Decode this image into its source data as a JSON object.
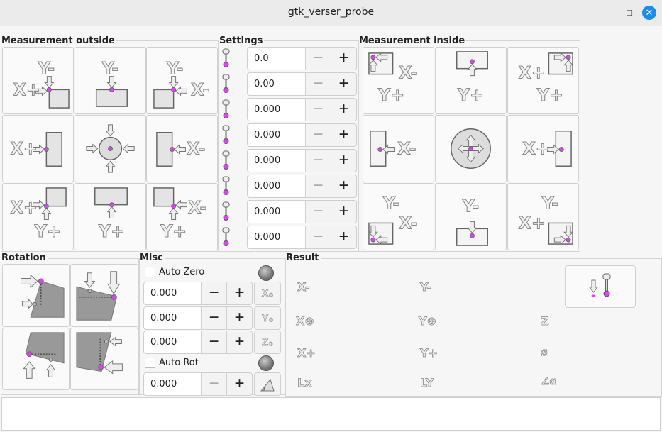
{
  "window": {
    "title": "gtk_verser_probe",
    "minimize": "–",
    "maximize": "□",
    "close": "✕"
  },
  "colors": {
    "probe_dot": "#e040fb",
    "accent": "#1c8de8"
  },
  "measurement_outside": {
    "title": "Measurement outside",
    "cells": [
      [
        "Y-",
        "X+"
      ],
      [
        "Y-"
      ],
      [
        "Y-",
        "X-"
      ],
      [
        "X+"
      ],
      [],
      [
        "X-"
      ],
      [
        "X+",
        "Y+"
      ],
      [
        "Y+"
      ],
      [
        "X-",
        "Y+"
      ]
    ]
  },
  "settings": {
    "title": "Settings",
    "rows": [
      {
        "icon": "probe-fast-feed-icon",
        "value": "0.0"
      },
      {
        "icon": "probe-slow-feed-icon",
        "value": "0.00"
      },
      {
        "icon": "probe-travel-icon",
        "value": "0.000"
      },
      {
        "icon": "probe-latch-icon",
        "value": "0.000"
      },
      {
        "icon": "probe-diameter-icon",
        "value": "0.000"
      },
      {
        "icon": "xy-clearance-icon",
        "value": "0.000"
      },
      {
        "icon": "edge-width-icon",
        "value": "0.000"
      },
      {
        "icon": "z-clearance-icon",
        "value": "0.000"
      }
    ],
    "minus": "−",
    "plus": "+"
  },
  "measurement_inside": {
    "title": "Measurement inside",
    "cells": [
      [
        "X-",
        "Y+"
      ],
      [
        "Y+"
      ],
      [
        "X+",
        "Y+"
      ],
      [
        "X-"
      ],
      [],
      [
        "X+"
      ],
      [
        "Y-",
        "X-"
      ],
      [
        "Y-"
      ],
      [
        "Y-",
        "X+"
      ]
    ]
  },
  "rotation": {
    "title": "Rotation"
  },
  "misc": {
    "title": "Misc",
    "auto_zero": "Auto Zero",
    "auto_zero_checked": false,
    "auto_rot": "Auto Rot",
    "auto_rot_checked": false,
    "rows": [
      {
        "value": "0.000",
        "button": "X₀"
      },
      {
        "value": "0.000",
        "button": "Y₀"
      },
      {
        "value": "0.000",
        "button": "Z₀"
      }
    ],
    "rot_value": "0.000",
    "minus": "−",
    "plus": "+"
  },
  "result": {
    "title": "Result",
    "items": [
      "X-",
      "Y-",
      "X⊕",
      "Y⊕",
      "Z",
      "X+",
      "Y+",
      "Lx",
      "LY",
      "⌀",
      "∠α"
    ]
  }
}
